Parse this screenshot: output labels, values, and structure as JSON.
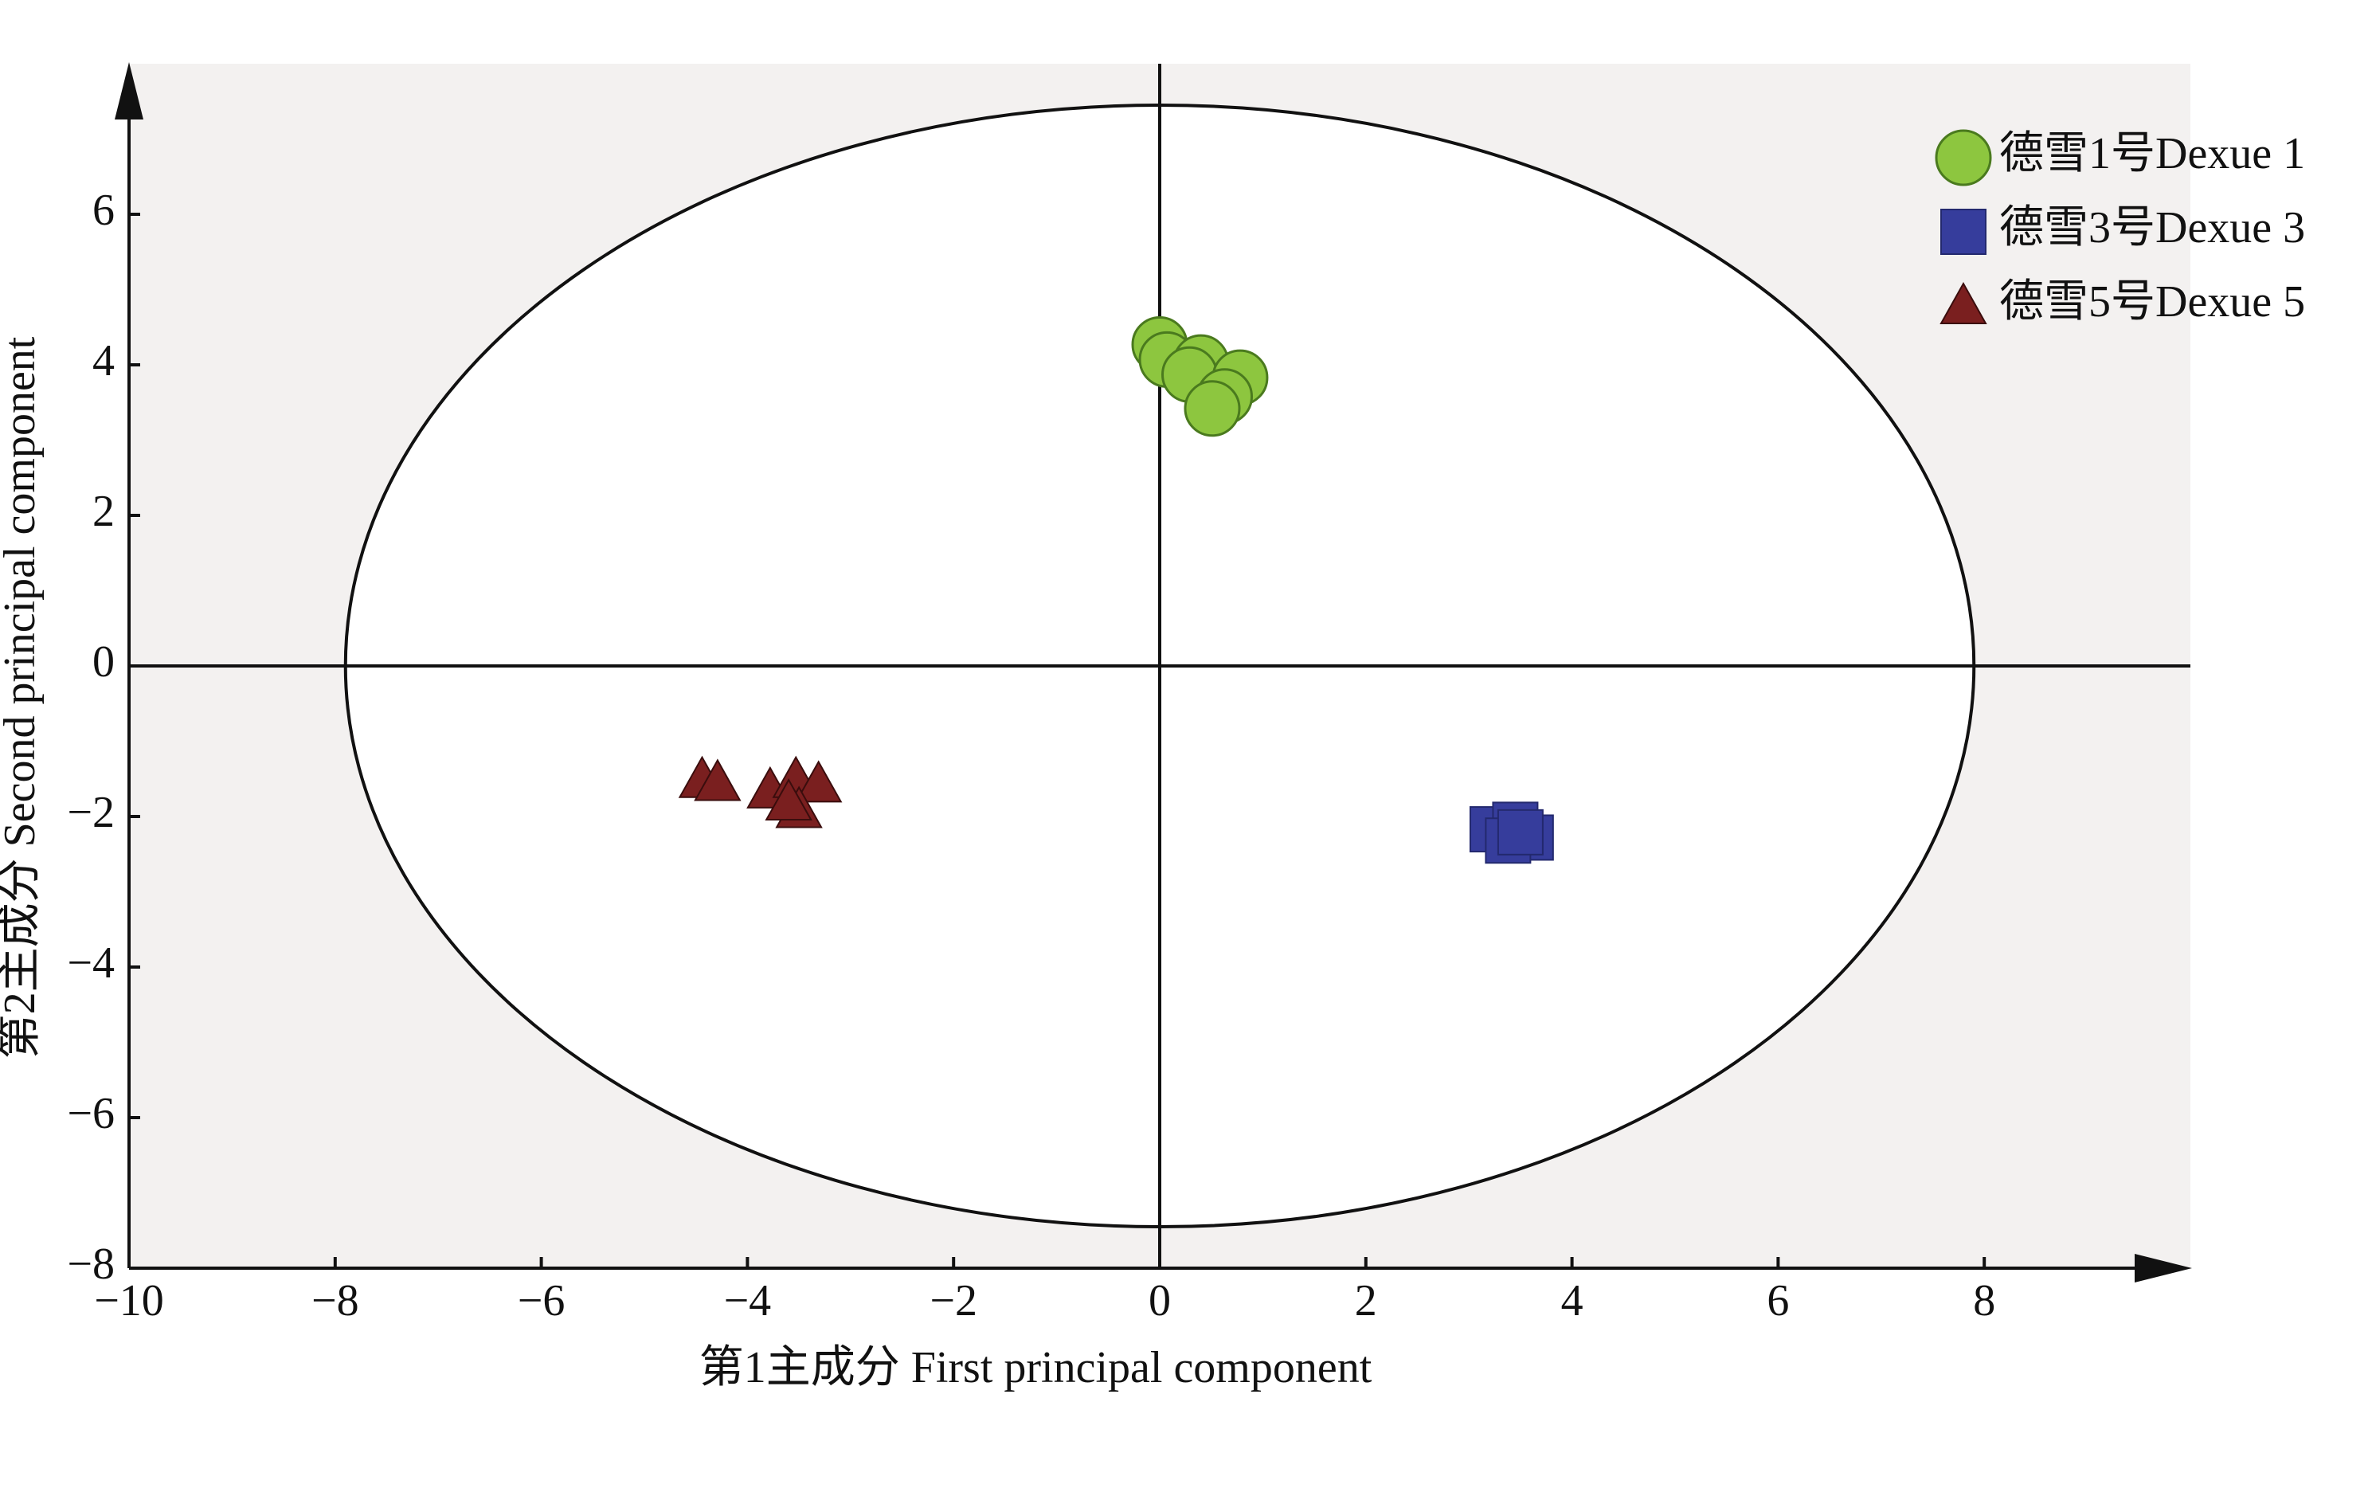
{
  "chart_data": {
    "type": "scatter",
    "x_label": "第1主成分 First principal component",
    "y_label": "第2主成分 Second principal component",
    "xlim": [
      -10,
      10
    ],
    "ylim": [
      -8,
      8
    ],
    "xticks": [
      {
        "value": -10,
        "label": "−10"
      },
      {
        "value": -8,
        "label": "−8"
      },
      {
        "value": -6,
        "label": "−6"
      },
      {
        "value": -4,
        "label": "−4"
      },
      {
        "value": -2,
        "label": "−2"
      },
      0,
      2,
      4,
      6,
      8
    ],
    "yticks": [
      {
        "value": -8,
        "label": "−8"
      },
      {
        "value": -6,
        "label": "−6"
      },
      {
        "value": -4,
        "label": "−4"
      },
      {
        "value": -2,
        "label": "−2"
      },
      0,
      2,
      4,
      6
    ],
    "ellipse_radii": [
      7.9,
      7.45
    ],
    "legend": "upper right",
    "series": [
      {
        "name": "德雪1号Dexue 1",
        "color": "#8dc63f",
        "marker": "circle",
        "x": [
          0,
          0.07,
          0.4,
          0.29,
          0.78,
          0.63,
          0.51
        ],
        "values": [
          4.27,
          4.07,
          4.03,
          3.87,
          3.83,
          3.58,
          3.42
        ]
      },
      {
        "name": "德雪3号Dexue 3",
        "color": "#363d9c",
        "marker": "square",
        "x": [
          3.23,
          3.45,
          3.6,
          3.38,
          3.5
        ],
        "values": [
          -2.17,
          -2.11,
          -2.28,
          -2.32,
          -2.21
        ]
      },
      {
        "name": "德雪5号Dexue 5",
        "color": "#7a1f1f",
        "marker": "triangle",
        "x": [
          -4.44,
          -4.29,
          -3.78,
          -3.53,
          -3.31,
          -3.5,
          -3.6
        ],
        "values": [
          -1.51,
          -1.55,
          -1.65,
          -1.51,
          -1.57,
          -1.91,
          -1.81
        ]
      }
    ]
  }
}
